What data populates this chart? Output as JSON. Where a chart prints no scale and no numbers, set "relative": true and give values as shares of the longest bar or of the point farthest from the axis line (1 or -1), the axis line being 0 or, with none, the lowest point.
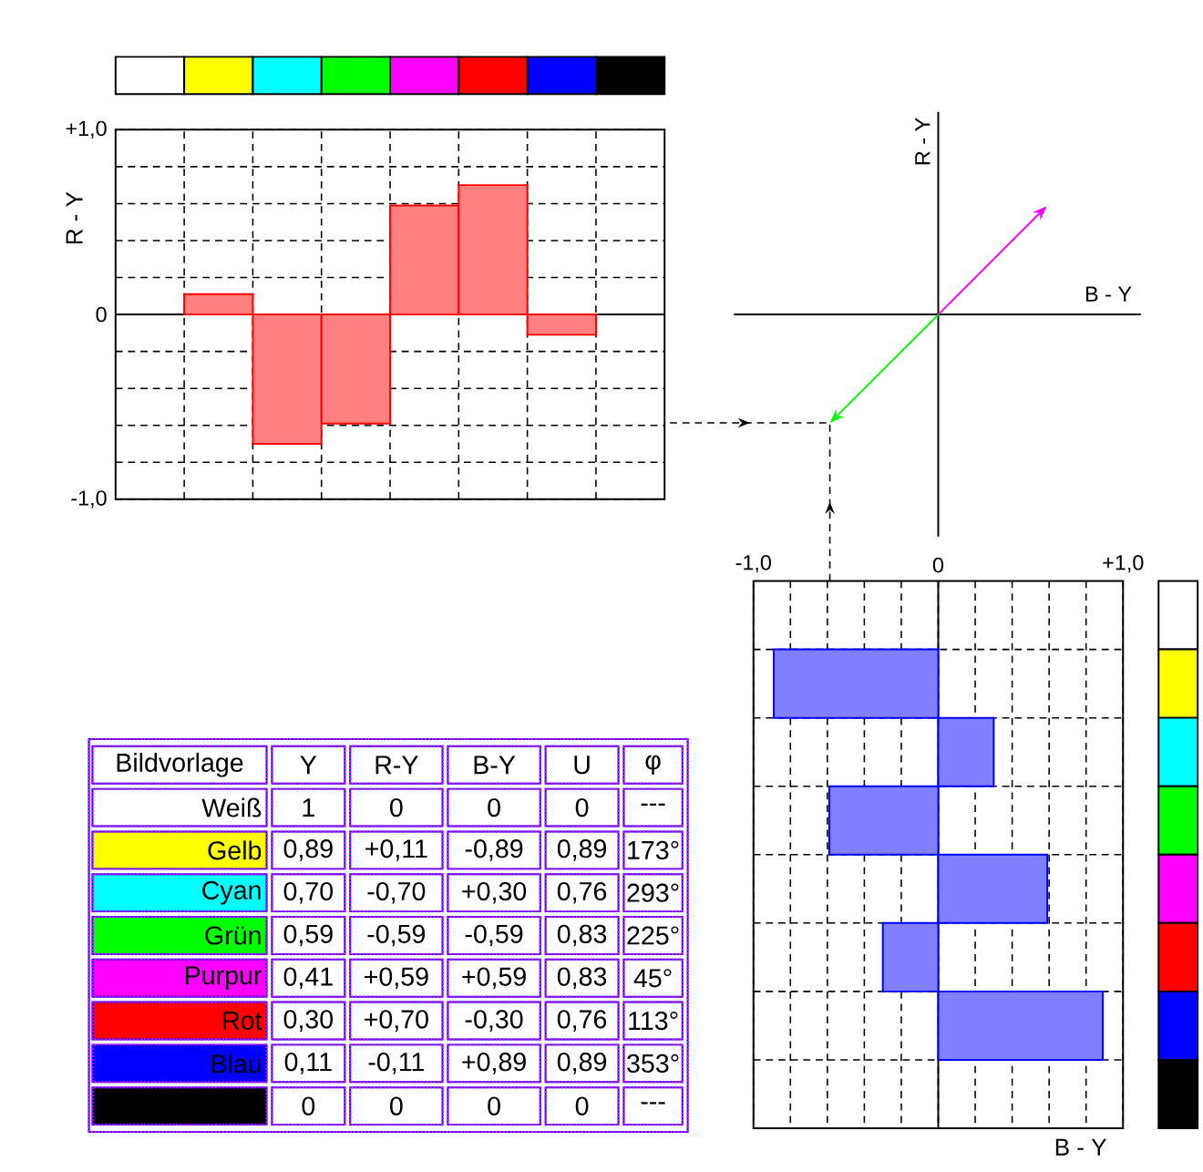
{
  "chart_data": [
    {
      "type": "bar",
      "ylabel": "R - Y",
      "categories": [
        null,
        null,
        null,
        null,
        null,
        null,
        null,
        null
      ],
      "values": [
        0,
        0.11,
        -0.7,
        -0.59,
        0.59,
        0.7,
        -0.11,
        0
      ],
      "color": "#ff8080",
      "ylim": [
        -1,
        1
      ],
      "yticks": [
        {
          "value": -1,
          "label": "-1,0"
        },
        {
          "value": -0.8,
          "label": null
        },
        {
          "value": -0.6,
          "label": null
        },
        {
          "value": -0.4,
          "label": null
        },
        {
          "value": -0.2,
          "label": null
        },
        0,
        {
          "value": 0.2,
          "label": null
        },
        {
          "value": 0.4,
          "label": null
        },
        {
          "value": 0.6,
          "label": null
        },
        {
          "value": 0.8,
          "label": null
        },
        {
          "value": 1,
          "label": "+1,0"
        }
      ],
      "grid": true
    },
    {
      "type": "line",
      "relative": true,
      "xlabel": "B - Y",
      "ylabel": "R - Y",
      "categories": [
        null,
        null,
        null
      ],
      "series": [
        {
          "color": "#00ff00",
          "values": [
            -1,
            0,
            null
          ]
        },
        {
          "color": "#ff00ff",
          "values": [
            null,
            0,
            1
          ]
        }
      ]
    },
    {
      "type": "bar",
      "orientation": "horizontal",
      "xlabel": "B - Y",
      "categories": [
        null,
        null,
        null,
        null,
        null,
        null,
        null,
        null
      ],
      "values": [
        0,
        -0.89,
        0.3,
        -0.59,
        0.59,
        -0.3,
        0.89,
        0
      ],
      "color": "#8080ff",
      "xlim": [
        -1,
        1
      ],
      "xticks": [
        {
          "value": -1,
          "label": "-1,0"
        },
        {
          "value": -0.8,
          "label": null
        },
        {
          "value": -0.6,
          "label": null
        },
        {
          "value": -0.4,
          "label": null
        },
        {
          "value": -0.2,
          "label": null
        },
        0,
        {
          "value": 0.2,
          "label": null
        },
        {
          "value": 0.4,
          "label": null
        },
        {
          "value": 0.6,
          "label": null
        },
        {
          "value": 0.8,
          "label": null
        },
        {
          "value": 1,
          "label": "+1,0"
        }
      ],
      "grid": true
    },
    {
      "type": "other",
      "ylabel": "Bildvorlage",
      "categories": [
        "Y",
        "R-Y",
        "B-Y",
        "U",
        "φ"
      ],
      "y_categories": [
        "Weiß",
        "Gelb",
        "Cyan",
        "Grün",
        "Purpur",
        "Rot",
        "Blau",
        null
      ],
      "cell_labels": [
        [
          "1",
          "0",
          "0",
          "0",
          "---"
        ],
        [
          "0,89",
          "+0,11",
          "-0,89",
          "0,89",
          "173°"
        ],
        [
          "0,70",
          "-0,70",
          "+0,30",
          "0,76",
          "293°"
        ],
        [
          "0,59",
          "-0,59",
          "-0,59",
          "0,83",
          "225°"
        ],
        [
          "0,41",
          "+0,59",
          "+0,59",
          "0,83",
          "45°"
        ],
        [
          "0,30",
          "+0,70",
          "-0,30",
          "0,76",
          "113°"
        ],
        [
          "0,11",
          "-0,11",
          "+0,89",
          "0,89",
          "353°"
        ],
        [
          "0",
          "0",
          "0",
          "0",
          "---"
        ]
      ]
    }
  ]
}
